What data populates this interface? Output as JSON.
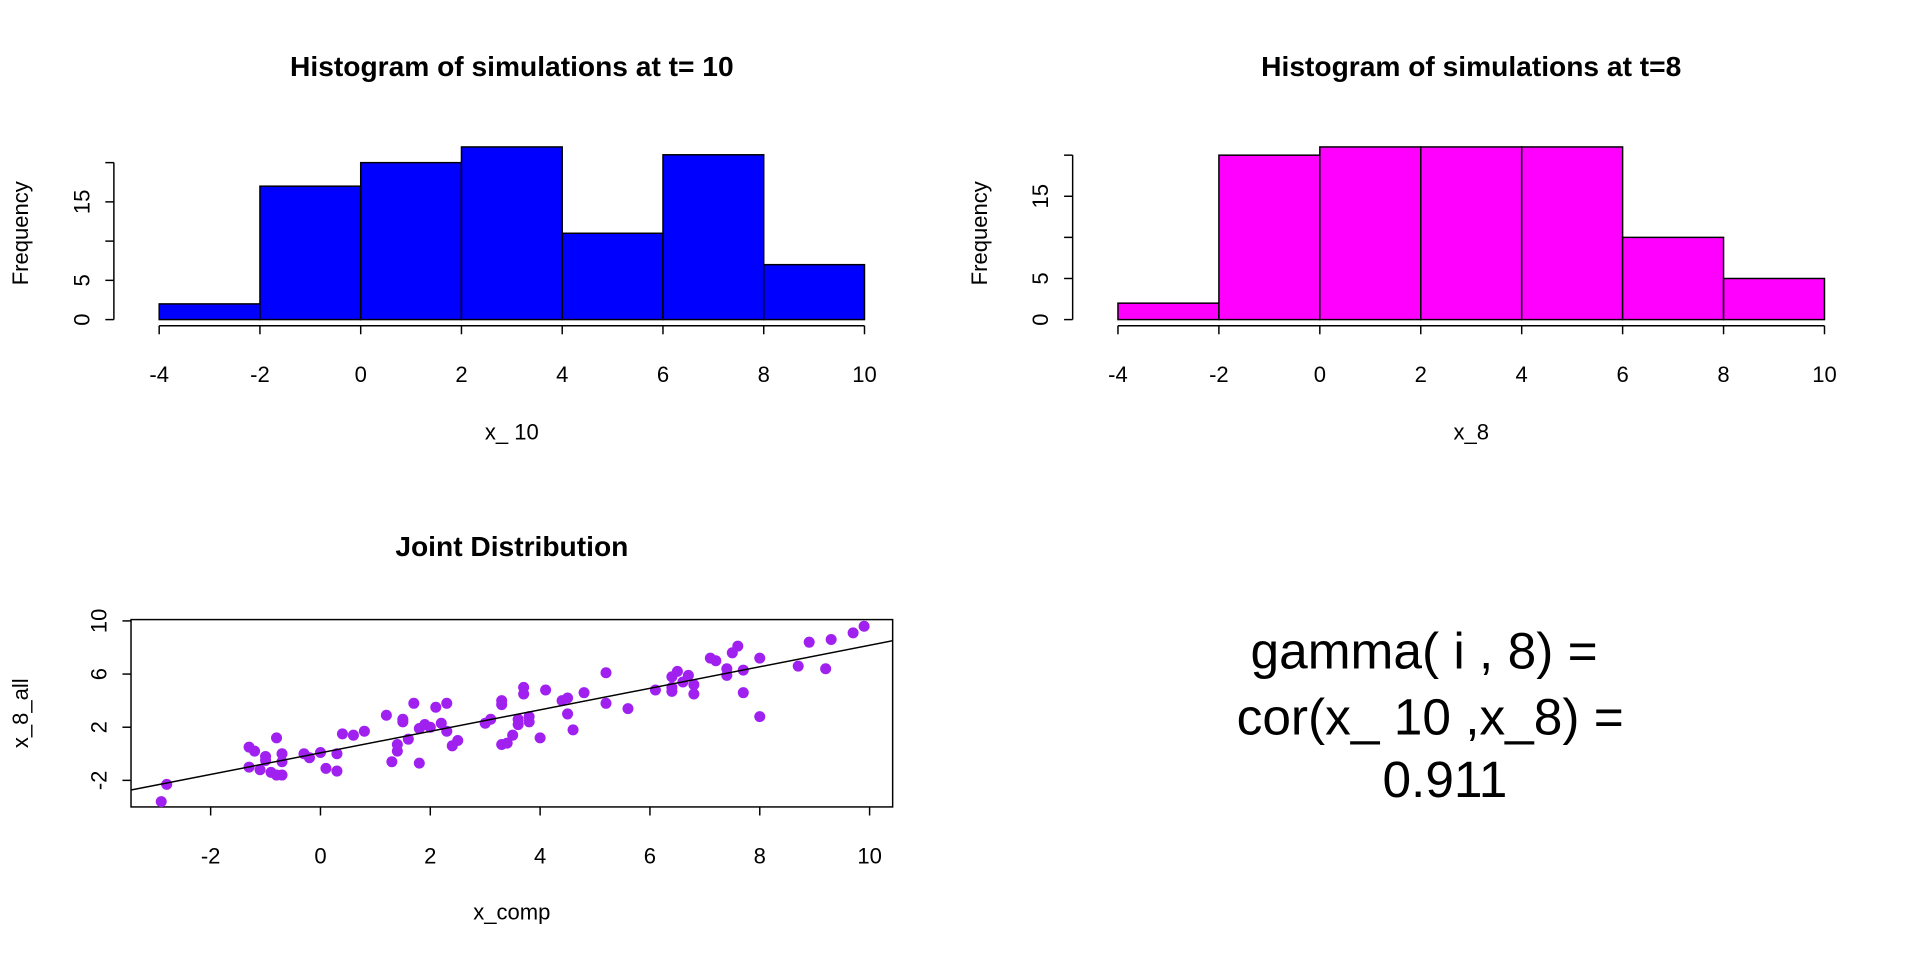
{
  "chart_data": [
    {
      "type": "histogram",
      "title": "Histogram of simulations at t= 10",
      "xlabel": "x_ 10",
      "ylabel": "Frequency",
      "bins": [
        -4,
        -2,
        0,
        2,
        4,
        6,
        8,
        10
      ],
      "counts": [
        2,
        17,
        20,
        22,
        11,
        21,
        7
      ],
      "color": "#0000ff",
      "xlim": [
        -4,
        10
      ],
      "xticks": [
        -4,
        -2,
        0,
        2,
        4,
        6,
        8,
        10
      ],
      "ylim": [
        0,
        22
      ],
      "yticks": [
        0,
        5,
        {
          "value": 10,
          "label": null
        },
        15,
        {
          "value": 20,
          "label": null
        }
      ]
    },
    {
      "type": "histogram",
      "title": "Histogram of simulations at t=8",
      "xlabel": "x_8",
      "ylabel": "Frequency",
      "bins": [
        -4,
        -2,
        0,
        2,
        4,
        6,
        8,
        10
      ],
      "counts": [
        2,
        20,
        21,
        21,
        21,
        10,
        5
      ],
      "color": "#ff00ff",
      "xlim": [
        -4,
        10
      ],
      "xticks": [
        -4,
        -2,
        0,
        2,
        4,
        6,
        8,
        10
      ],
      "ylim": [
        0,
        21
      ],
      "yticks": [
        0,
        5,
        {
          "value": 10,
          "label": null
        },
        15,
        {
          "value": 20,
          "label": null
        }
      ]
    },
    {
      "type": "scatter",
      "title": "Joint Distribution",
      "xlabel": "x_comp",
      "ylabel": "x_8_all",
      "color": "#a020f0",
      "x": [
        -2.9,
        -2.8,
        -1.3,
        -1.3,
        -1.2,
        -1.1,
        -1.0,
        -1.0,
        -0.9,
        -0.8,
        -0.8,
        -0.7,
        -0.7,
        -0.7,
        -0.3,
        -0.2,
        0.0,
        0.1,
        0.3,
        0.3,
        0.4,
        0.6,
        0.8,
        1.2,
        1.3,
        1.4,
        1.4,
        1.5,
        1.5,
        1.6,
        1.7,
        1.8,
        1.8,
        1.9,
        2.0,
        2.1,
        2.2,
        2.3,
        2.3,
        2.4,
        2.5,
        3.0,
        3.1,
        3.3,
        3.3,
        3.3,
        3.4,
        3.5,
        3.6,
        3.6,
        3.7,
        3.7,
        3.8,
        3.8,
        4.0,
        4.1,
        4.4,
        4.5,
        4.5,
        4.6,
        4.8,
        5.2,
        5.2,
        5.6,
        6.1,
        6.4,
        6.4,
        6.4,
        6.5,
        6.6,
        6.7,
        6.8,
        6.8,
        7.1,
        7.2,
        7.4,
        7.4,
        7.5,
        7.6,
        7.7,
        7.7,
        8.0,
        8.0,
        8.7,
        8.9,
        9.2,
        9.3,
        9.7,
        9.9
      ],
      "y": [
        -3.6,
        -2.3,
        0.5,
        -1.0,
        0.2,
        -1.2,
        -0.2,
        -0.5,
        -1.4,
        -1.6,
        1.2,
        -1.6,
        -0.6,
        0.0,
        0.0,
        -0.3,
        0.1,
        -1.1,
        -1.3,
        0.0,
        1.5,
        1.4,
        1.7,
        2.9,
        -0.6,
        0.2,
        0.7,
        2.6,
        2.4,
        1.1,
        3.8,
        1.9,
        -0.7,
        2.2,
        2.0,
        3.5,
        2.3,
        1.7,
        3.8,
        0.6,
        1.0,
        2.3,
        2.6,
        0.7,
        4.0,
        3.7,
        0.8,
        1.4,
        2.2,
        2.6,
        4.5,
        5.0,
        2.8,
        2.4,
        1.2,
        4.8,
        4.0,
        4.2,
        3.0,
        1.8,
        4.6,
        3.8,
        6.1,
        3.4,
        4.8,
        5.8,
        5.0,
        4.7,
        6.2,
        5.4,
        5.9,
        4.5,
        5.2,
        7.2,
        7.0,
        5.9,
        6.4,
        7.6,
        8.1,
        4.6,
        6.3,
        2.8,
        7.2,
        6.6,
        8.4,
        6.4,
        8.6,
        9.1,
        9.6
      ],
      "fit_line": {
        "intercept": 0.07,
        "slope": 0.81
      },
      "xlim": [
        -3.45,
        10.42
      ],
      "xticks": [
        -2,
        0,
        2,
        4,
        6,
        8,
        10
      ],
      "ylim": [
        -4.0,
        10.1
      ],
      "yticks": [
        -2,
        2,
        6,
        10
      ]
    }
  ],
  "text_panel": {
    "lines": [
      "gamma( i , 8) =",
      "cor(x_ 10 ,x_8) =",
      "0.911"
    ]
  }
}
